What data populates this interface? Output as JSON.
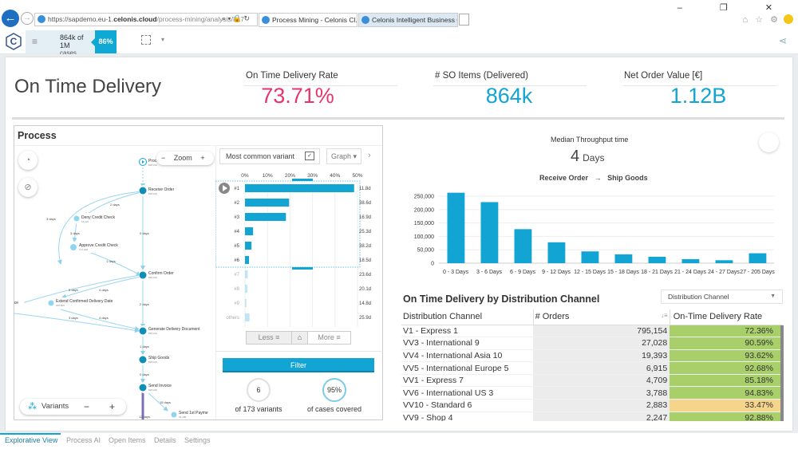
{
  "browser": {
    "url_prefix": "https://sapdemo.eu-1.",
    "url_domain": "celonis.cloud",
    "url_path": "/process-mining/analysis/817",
    "tabs": [
      {
        "label": "Process Mining - Celonis Cl...",
        "close": "×"
      },
      {
        "label": "Celonis Intelligent Business Cl..."
      }
    ],
    "window_controls": "–  ❐  ✕",
    "icons": "⌂ ☆ ⚙"
  },
  "toolbar": {
    "logo": "C",
    "menu_icon": "≡",
    "selection_count": "864k of 1M",
    "selection_label": "cases selected",
    "selection_pct": "86%",
    "dropdown": "▾",
    "share_icon": "⋖"
  },
  "header": {
    "title": "On Time Delivery",
    "kpis": [
      {
        "label": "On Time Delivery Rate",
        "value": "73.71%",
        "color": "#e8336d"
      },
      {
        "label": "# SO Items (Delivered)",
        "value": "864k",
        "color": "#12a5d4"
      },
      {
        "label": "Net Order Value [€]",
        "value": "1.12B",
        "color": "#12a5d4"
      }
    ]
  },
  "process": {
    "title": "Process",
    "zoom_label": "Zoom",
    "zoom_minus": "−",
    "zoom_plus": "+",
    "variants_label": "Variants",
    "variants_minus": "−",
    "variants_plus": "+",
    "nodes": [
      {
        "name": "Proce",
        "count": "818,219"
      },
      {
        "name": "Receive Order",
        "count": "818,219"
      },
      {
        "name": "Deny Credit Check",
        "count": "16,115"
      },
      {
        "name": "Approve Credit Check",
        "count": "172,918"
      },
      {
        "name": "Confirm Order",
        "count": "818,219"
      },
      {
        "name": "rice",
        "count": ""
      },
      {
        "name": "Extend Confirmed Delivery Date",
        "count": "166,503"
      },
      {
        "name": "Generate Delivery Document",
        "count": "818,219"
      },
      {
        "name": "Ship Goods",
        "count": "818,219"
      },
      {
        "name": "Send Invoice",
        "count": "818,219"
      },
      {
        "name": "Send 1st Payme",
        "count": "31,185"
      }
    ],
    "edges": [
      "2 days",
      "3 days",
      "3 days",
      "0 days",
      "1 days",
      "5 days",
      "4 days",
      "2 days",
      "3 days",
      "4 days",
      "1 days",
      "0 days",
      "15 days",
      "12 days"
    ]
  },
  "variants": {
    "selector": "Most common variant",
    "selector_check": "✓",
    "graph_btn": "Graph ▾",
    "next": "›",
    "axis_ticks": [
      "0%",
      "10%",
      "20%",
      "30%",
      "40%",
      "50%"
    ],
    "rows": [
      {
        "label": "#1",
        "pct": 48.5,
        "time": "11.8d",
        "selected": true
      },
      {
        "label": "#2",
        "pct": 19.6,
        "time": "38.6d",
        "selected": true
      },
      {
        "label": "#3",
        "pct": 18.2,
        "time": "16.9d",
        "selected": true
      },
      {
        "label": "#4",
        "pct": 3.6,
        "time": "25.3d",
        "selected": true
      },
      {
        "label": "#5",
        "pct": 2.9,
        "time": "38.2d",
        "selected": true
      },
      {
        "label": "#6",
        "pct": 1.8,
        "time": "18.5d",
        "selected": true
      },
      {
        "label": "#7",
        "pct": 1.2,
        "time": "23.6d",
        "selected": false
      },
      {
        "label": "#8",
        "pct": 1.1,
        "time": "20.1d",
        "selected": false
      },
      {
        "label": "#9",
        "pct": 0.6,
        "time": "14.8d",
        "selected": false
      },
      {
        "label": "others",
        "pct": 2.0,
        "time": "25.9d",
        "selected": false
      }
    ],
    "less_label": "Less",
    "more_label": "More",
    "home_icon": "⌂",
    "filter_label": "Filter",
    "variant_count": "6",
    "variant_count_label": "of 173 variants",
    "coverage": "95%",
    "coverage_label": "of cases covered"
  },
  "throughput": {
    "title": "Median Throughput time",
    "value": "4",
    "unit": "Days",
    "from": "Receive Order",
    "arrow": "→",
    "to": "Ship Goods"
  },
  "chart_data": {
    "type": "bar",
    "title": "Median Throughput time distribution",
    "categories": [
      "0 - 3 Days",
      "3 - 6 Days",
      "6 - 9 Days",
      "9 - 12 Days",
      "12 - 15 Days",
      "15 - 18 Days",
      "18 - 21 Days",
      "21 - 24 Days",
      "24 - 27 Days",
      "27 - 205 Days"
    ],
    "values": [
      263000,
      228000,
      127000,
      78000,
      44000,
      33000,
      24000,
      15000,
      11000,
      37000
    ],
    "yticks": [
      "0",
      "50,000",
      "100,000",
      "150,000",
      "200,000",
      "250,000"
    ],
    "ylim": [
      0,
      265000
    ],
    "grid": true,
    "color": "#12a5d4"
  },
  "dist_table": {
    "title": "On Time Delivery by Distribution Channel",
    "dropdown": "Distribution Channel",
    "columns": [
      "Distribution Channel",
      "# Orders",
      "On-Time Delivery Rate"
    ],
    "sort_icon": "↓≡",
    "rows": [
      {
        "channel": "V1 - Express 1",
        "orders": "795,154",
        "rate": "72.36%",
        "color": "#a8cf6a"
      },
      {
        "channel": "VV3 - International 9",
        "orders": "27,028",
        "rate": "90.59%",
        "color": "#a8cf6a"
      },
      {
        "channel": "VV4 - International Asia 10",
        "orders": "19,393",
        "rate": "93.62%",
        "color": "#a8cf6a"
      },
      {
        "channel": "VV5 - International Europe 5",
        "orders": "6,915",
        "rate": "92.68%",
        "color": "#a8cf6a"
      },
      {
        "channel": "VV1 - Express 7",
        "orders": "4,709",
        "rate": "85.18%",
        "color": "#a8cf6a"
      },
      {
        "channel": "VV6 - International US 3",
        "orders": "3,788",
        "rate": "94.83%",
        "color": "#a8cf6a"
      },
      {
        "channel": "VV10 - Standard 6",
        "orders": "2,883",
        "rate": "33.47%",
        "color": "#f5d48c"
      },
      {
        "channel": "VV9 - Shop 4",
        "orders": "2,247",
        "rate": "92.88%",
        "color": "#a8cf6a"
      }
    ]
  },
  "bottom_tabs": [
    {
      "label": "Explorative View",
      "active": true
    },
    {
      "label": "Process AI",
      "active": false
    },
    {
      "label": "Open Items",
      "active": false
    },
    {
      "label": "Details",
      "active": false
    },
    {
      "label": "Settings",
      "active": false
    }
  ]
}
